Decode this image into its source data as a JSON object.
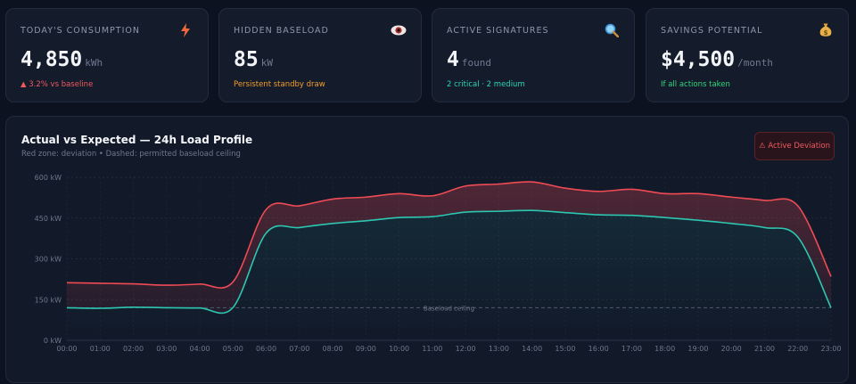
{
  "cards": [
    {
      "label": "TODAY'S CONSUMPTION",
      "value": "4,850",
      "unit": "kWh",
      "sub": "▲ 3.2% vs baseline",
      "sub_color": "#f05a5e",
      "icon": "lightning-icon"
    },
    {
      "label": "HIDDEN BASELOAD",
      "value": "85",
      "unit": "kW",
      "sub": "Persistent standby draw",
      "sub_color": "#f59e2b",
      "icon": "eye-icon"
    },
    {
      "label": "ACTIVE SIGNATURES",
      "value": "4",
      "unit": "found",
      "sub": "2 critical · 2 medium",
      "sub_color": "#2dd4b4",
      "icon": "magnifier-icon"
    },
    {
      "label": "SAVINGS POTENTIAL",
      "value": "$4,500",
      "unit": "/month",
      "sub": "If all actions taken",
      "sub_color": "#31d67a",
      "icon": "money-bag-icon"
    }
  ],
  "panel": {
    "title": "Actual vs Expected — 24h Load Profile",
    "subtitle": "Red zone: deviation • Dashed: permitted baseload ceiling",
    "badge": "⚠ Active Deviation"
  },
  "chart_data": {
    "type": "line",
    "x": [
      "00:00",
      "01:00",
      "02:00",
      "03:00",
      "04:00",
      "05:00",
      "06:00",
      "07:00",
      "08:00",
      "09:00",
      "10:00",
      "11:00",
      "12:00",
      "13:00",
      "14:00",
      "15:00",
      "16:00",
      "17:00",
      "18:00",
      "19:00",
      "20:00",
      "21:00",
      "22:00",
      "23:00"
    ],
    "series": [
      {
        "values": [
          212,
          210,
          208,
          203,
          207,
          215,
          482,
          495,
          520,
          527,
          540,
          532,
          568,
          575,
          583,
          560,
          548,
          556,
          540,
          540,
          527,
          515,
          495,
          235
        ],
        "color": "#ef4b55"
      },
      {
        "values": [
          120,
          118,
          122,
          120,
          119,
          121,
          395,
          415,
          430,
          440,
          452,
          455,
          472,
          475,
          478,
          470,
          462,
          460,
          452,
          442,
          430,
          415,
          380,
          120
        ],
        "color": "#2dc6b0"
      }
    ],
    "baseload_ceiling": 120,
    "baseload_label": "Baseload ceiling",
    "y_ticks": [
      0,
      150,
      300,
      450,
      600
    ],
    "y_tick_labels": [
      "0 kW",
      "150 kW",
      "300 kW",
      "450 kW",
      "600 kW"
    ],
    "ylim": [
      0,
      600
    ],
    "grid": true
  }
}
